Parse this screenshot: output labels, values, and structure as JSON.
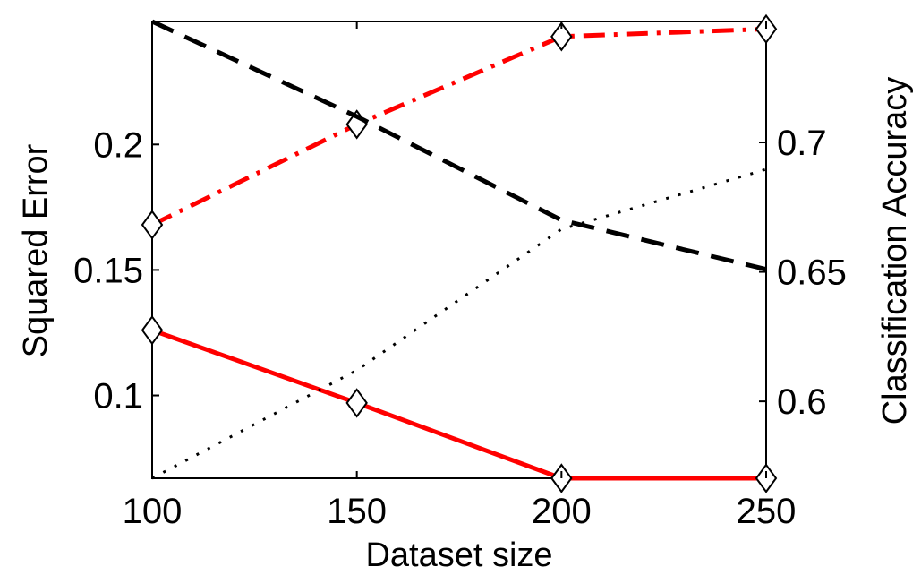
{
  "chart_data": {
    "type": "line",
    "xlabel": "Dataset size",
    "ylabel_left": "Squared Error",
    "ylabel_right": "Classification Accuracy",
    "x": [
      100,
      150,
      200,
      250
    ],
    "xlim": [
      100,
      250
    ],
    "ylim_left": [
      0.067,
      0.249
    ],
    "ylim_right": [
      0.5703,
      0.7467
    ],
    "xticks": [
      "100",
      "150",
      "200",
      "250"
    ],
    "yticks_left": [
      "0.1",
      "0.15",
      "0.2"
    ],
    "yticks_right": [
      "0.6",
      "0.65",
      "0.7"
    ],
    "yticks_left_values": [
      0.1,
      0.15,
      0.2
    ],
    "yticks_right_values": [
      0.6,
      0.65,
      0.7
    ],
    "grid": false,
    "series": [
      {
        "axis": "left",
        "color": "#ff0000",
        "style": "solid",
        "marker": "diamond",
        "values": [
          0.126,
          0.097,
          0.067,
          0.067
        ]
      },
      {
        "axis": "left",
        "color": "#ff0000",
        "style": "dashdot",
        "marker": "diamond",
        "values": [
          0.168,
          0.208,
          0.243,
          0.246
        ]
      },
      {
        "axis": "right",
        "color": "#000000",
        "style": "dashed",
        "marker": "none",
        "values": [
          0.7467,
          0.71,
          0.67,
          0.651
        ]
      },
      {
        "axis": "right",
        "color": "#000000",
        "style": "dotted",
        "marker": "none",
        "values": [
          0.5703,
          0.612,
          0.6665,
          0.6896
        ]
      }
    ]
  }
}
